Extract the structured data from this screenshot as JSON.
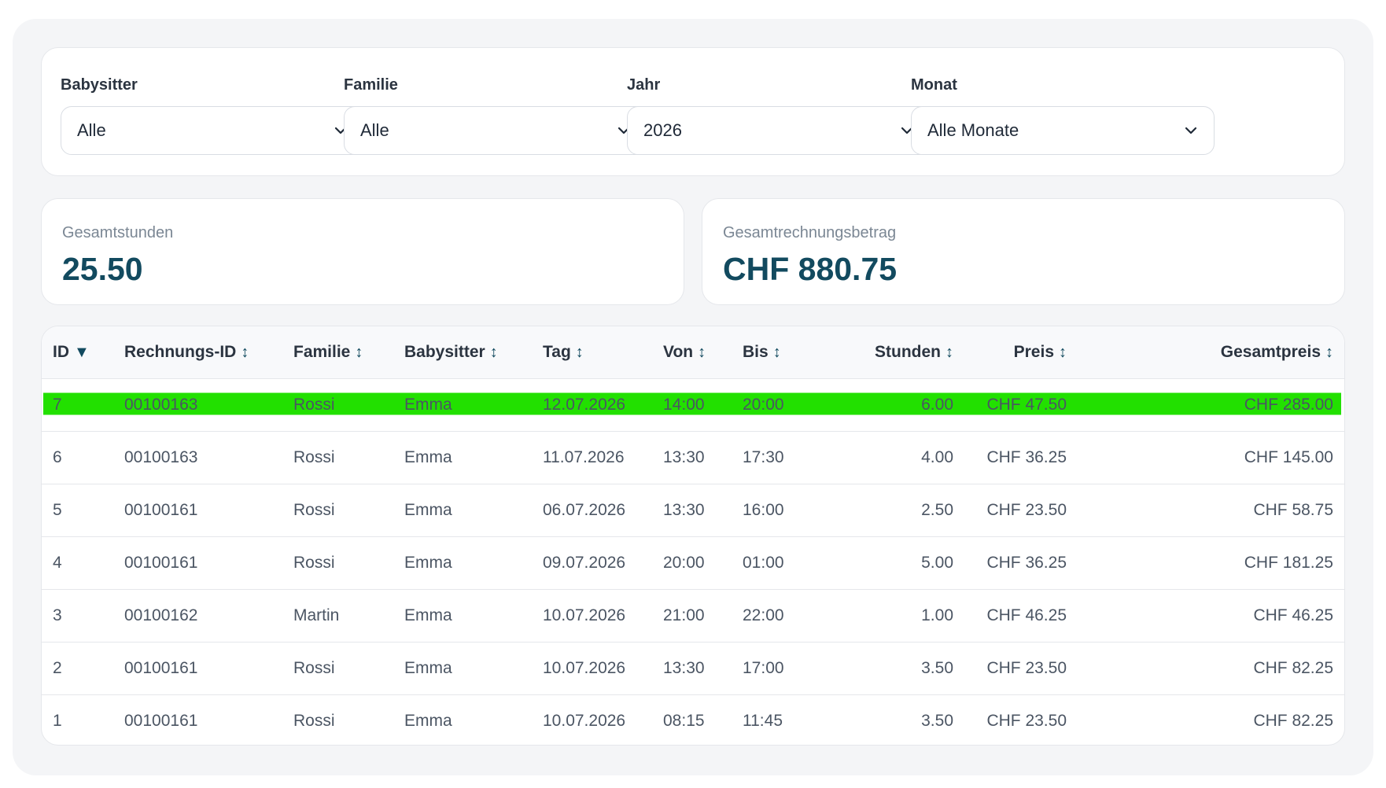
{
  "filters": {
    "babysitter": {
      "label": "Babysitter",
      "value": "Alle"
    },
    "familie": {
      "label": "Familie",
      "value": "Alle"
    },
    "jahr": {
      "label": "Jahr",
      "value": "2026"
    },
    "monat": {
      "label": "Monat",
      "value": "Alle Monate"
    }
  },
  "stats": {
    "hours": {
      "label": "Gesamtstunden",
      "value": "25.50"
    },
    "amount": {
      "label": "Gesamtrechnungsbetrag",
      "value": "CHF 880.75"
    }
  },
  "table": {
    "columns": [
      {
        "label": "ID",
        "sort": "▼"
      },
      {
        "label": "Rechnungs-ID",
        "sort": "↕"
      },
      {
        "label": "Familie",
        "sort": "↕"
      },
      {
        "label": "Babysitter",
        "sort": "↕"
      },
      {
        "label": "Tag",
        "sort": "↕"
      },
      {
        "label": "Von",
        "sort": "↕"
      },
      {
        "label": "Bis",
        "sort": "↕"
      },
      {
        "label": "Stunden",
        "sort": "↕"
      },
      {
        "label": "Preis",
        "sort": "↕"
      },
      {
        "label": "Gesamtpreis",
        "sort": "↕"
      }
    ],
    "highlight_color": "#22e000",
    "rows": [
      {
        "id": "7",
        "invoice": "00100163",
        "family": "Rossi",
        "sitter": "Emma",
        "day": "12.07.2026",
        "from": "14:00",
        "to": "20:00",
        "hours": "6.00",
        "price": "CHF 47.50",
        "total": "CHF 285.00",
        "highlighted": true
      },
      {
        "id": "6",
        "invoice": "00100163",
        "family": "Rossi",
        "sitter": "Emma",
        "day": "11.07.2026",
        "from": "13:30",
        "to": "17:30",
        "hours": "4.00",
        "price": "CHF 36.25",
        "total": "CHF 145.00"
      },
      {
        "id": "5",
        "invoice": "00100161",
        "family": "Rossi",
        "sitter": "Emma",
        "day": "06.07.2026",
        "from": "13:30",
        "to": "16:00",
        "hours": "2.50",
        "price": "CHF 23.50",
        "total": "CHF 58.75"
      },
      {
        "id": "4",
        "invoice": "00100161",
        "family": "Rossi",
        "sitter": "Emma",
        "day": "09.07.2026",
        "from": "20:00",
        "to": "01:00",
        "hours": "5.00",
        "price": "CHF 36.25",
        "total": "CHF 181.25"
      },
      {
        "id": "3",
        "invoice": "00100162",
        "family": "Martin",
        "sitter": "Emma",
        "day": "10.07.2026",
        "from": "21:00",
        "to": "22:00",
        "hours": "1.00",
        "price": "CHF 46.25",
        "total": "CHF 46.25"
      },
      {
        "id": "2",
        "invoice": "00100161",
        "family": "Rossi",
        "sitter": "Emma",
        "day": "10.07.2026",
        "from": "13:30",
        "to": "17:00",
        "hours": "3.50",
        "price": "CHF 23.50",
        "total": "CHF 82.25"
      },
      {
        "id": "1",
        "invoice": "00100161",
        "family": "Rossi",
        "sitter": "Emma",
        "day": "10.07.2026",
        "from": "08:15",
        "to": "11:45",
        "hours": "3.50",
        "price": "CHF 23.50",
        "total": "CHF 82.25"
      }
    ]
  }
}
